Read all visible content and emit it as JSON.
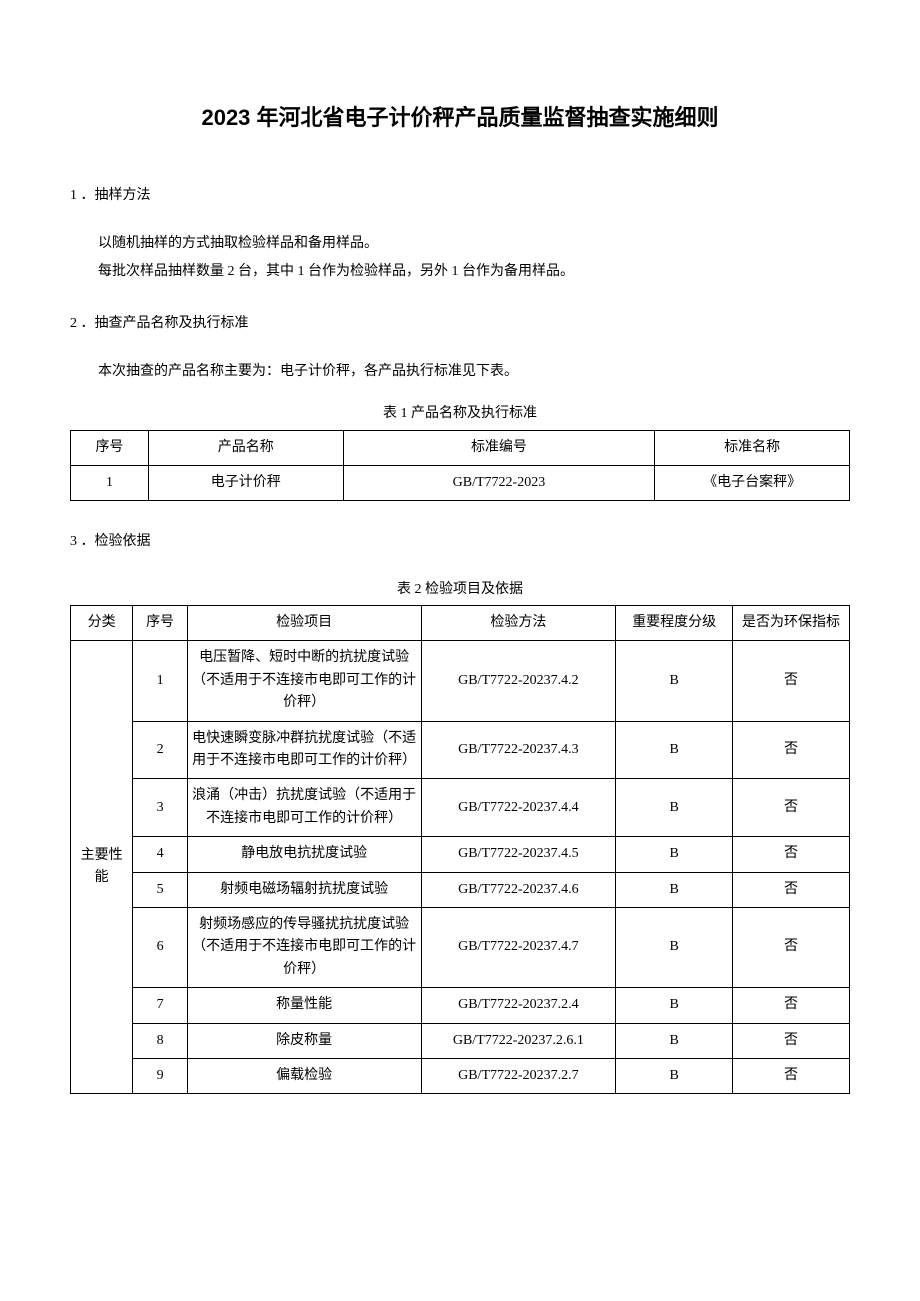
{
  "title": "2023 年河北省电子计价秤产品质量监督抽查实施细则",
  "section1": {
    "header": "1 ．抽样方法",
    "p1": "以随机抽样的方式抽取检验样品和备用样品。",
    "p2": "每批次样品抽样数量 2 台，其中 1 台作为检验样品，另外 1 台作为备用样品。"
  },
  "section2": {
    "header": "2 ．抽查产品名称及执行标准",
    "p1": "本次抽查的产品名称主要为：电子计价秤，各产品执行标准见下表。"
  },
  "section3": {
    "header": "3 ．检验依据"
  },
  "table1": {
    "caption": "表 1 产品名称及执行标准",
    "headers": {
      "col1": "序号",
      "col2": "产品名称",
      "col3": "标准编号",
      "col4": "标准名称"
    },
    "row1": {
      "col1": "1",
      "col2": "电子计价秤",
      "col3": "GB/T7722-2023",
      "col4": "《电子台案秤》"
    }
  },
  "table2": {
    "caption": "表 2 检验项目及依据",
    "headers": {
      "col1": "分类",
      "col2": "序号",
      "col3": "检验项目",
      "col4": "检验方法",
      "col5": "重要程度分级",
      "col6": "是否为环保指标"
    },
    "category": "主要性能",
    "rows": [
      {
        "seq": "1",
        "item": "电压暂降、短时中断的抗扰度试验（不适用于不连接市电即可工作的计价秤）",
        "method": "GB/T7722-20237.4.2",
        "level": "B",
        "env": "否"
      },
      {
        "seq": "2",
        "item": "电快速瞬变脉冲群抗扰度试验（不适用于不连接市电即可工作的计价秤）",
        "method": "GB/T7722-20237.4.3",
        "level": "B",
        "env": "否"
      },
      {
        "seq": "3",
        "item": "浪涌（冲击）抗扰度试验（不适用于不连接市电即可工作的计价秤）",
        "method": "GB/T7722-20237.4.4",
        "level": "B",
        "env": "否"
      },
      {
        "seq": "4",
        "item": "静电放电抗扰度试验",
        "method": "GB/T7722-20237.4.5",
        "level": "B",
        "env": "否"
      },
      {
        "seq": "5",
        "item": "射频电磁场辐射抗扰度试验",
        "method": "GB/T7722-20237.4.6",
        "level": "B",
        "env": "否"
      },
      {
        "seq": "6",
        "item": "射频场感应的传导骚扰抗扰度试验（不适用于不连接市电即可工作的计价秤）",
        "method": "GB/T7722-20237.4.7",
        "level": "B",
        "env": "否"
      },
      {
        "seq": "7",
        "item": "称量性能",
        "method": "GB/T7722-20237.2.4",
        "level": "B",
        "env": "否"
      },
      {
        "seq": "8",
        "item": "除皮称量",
        "method": "GB/T7722-20237.2.6.1",
        "level": "B",
        "env": "否"
      },
      {
        "seq": "9",
        "item": "偏载检验",
        "method": "GB/T7722-20237.2.7",
        "level": "B",
        "env": "否"
      }
    ]
  }
}
